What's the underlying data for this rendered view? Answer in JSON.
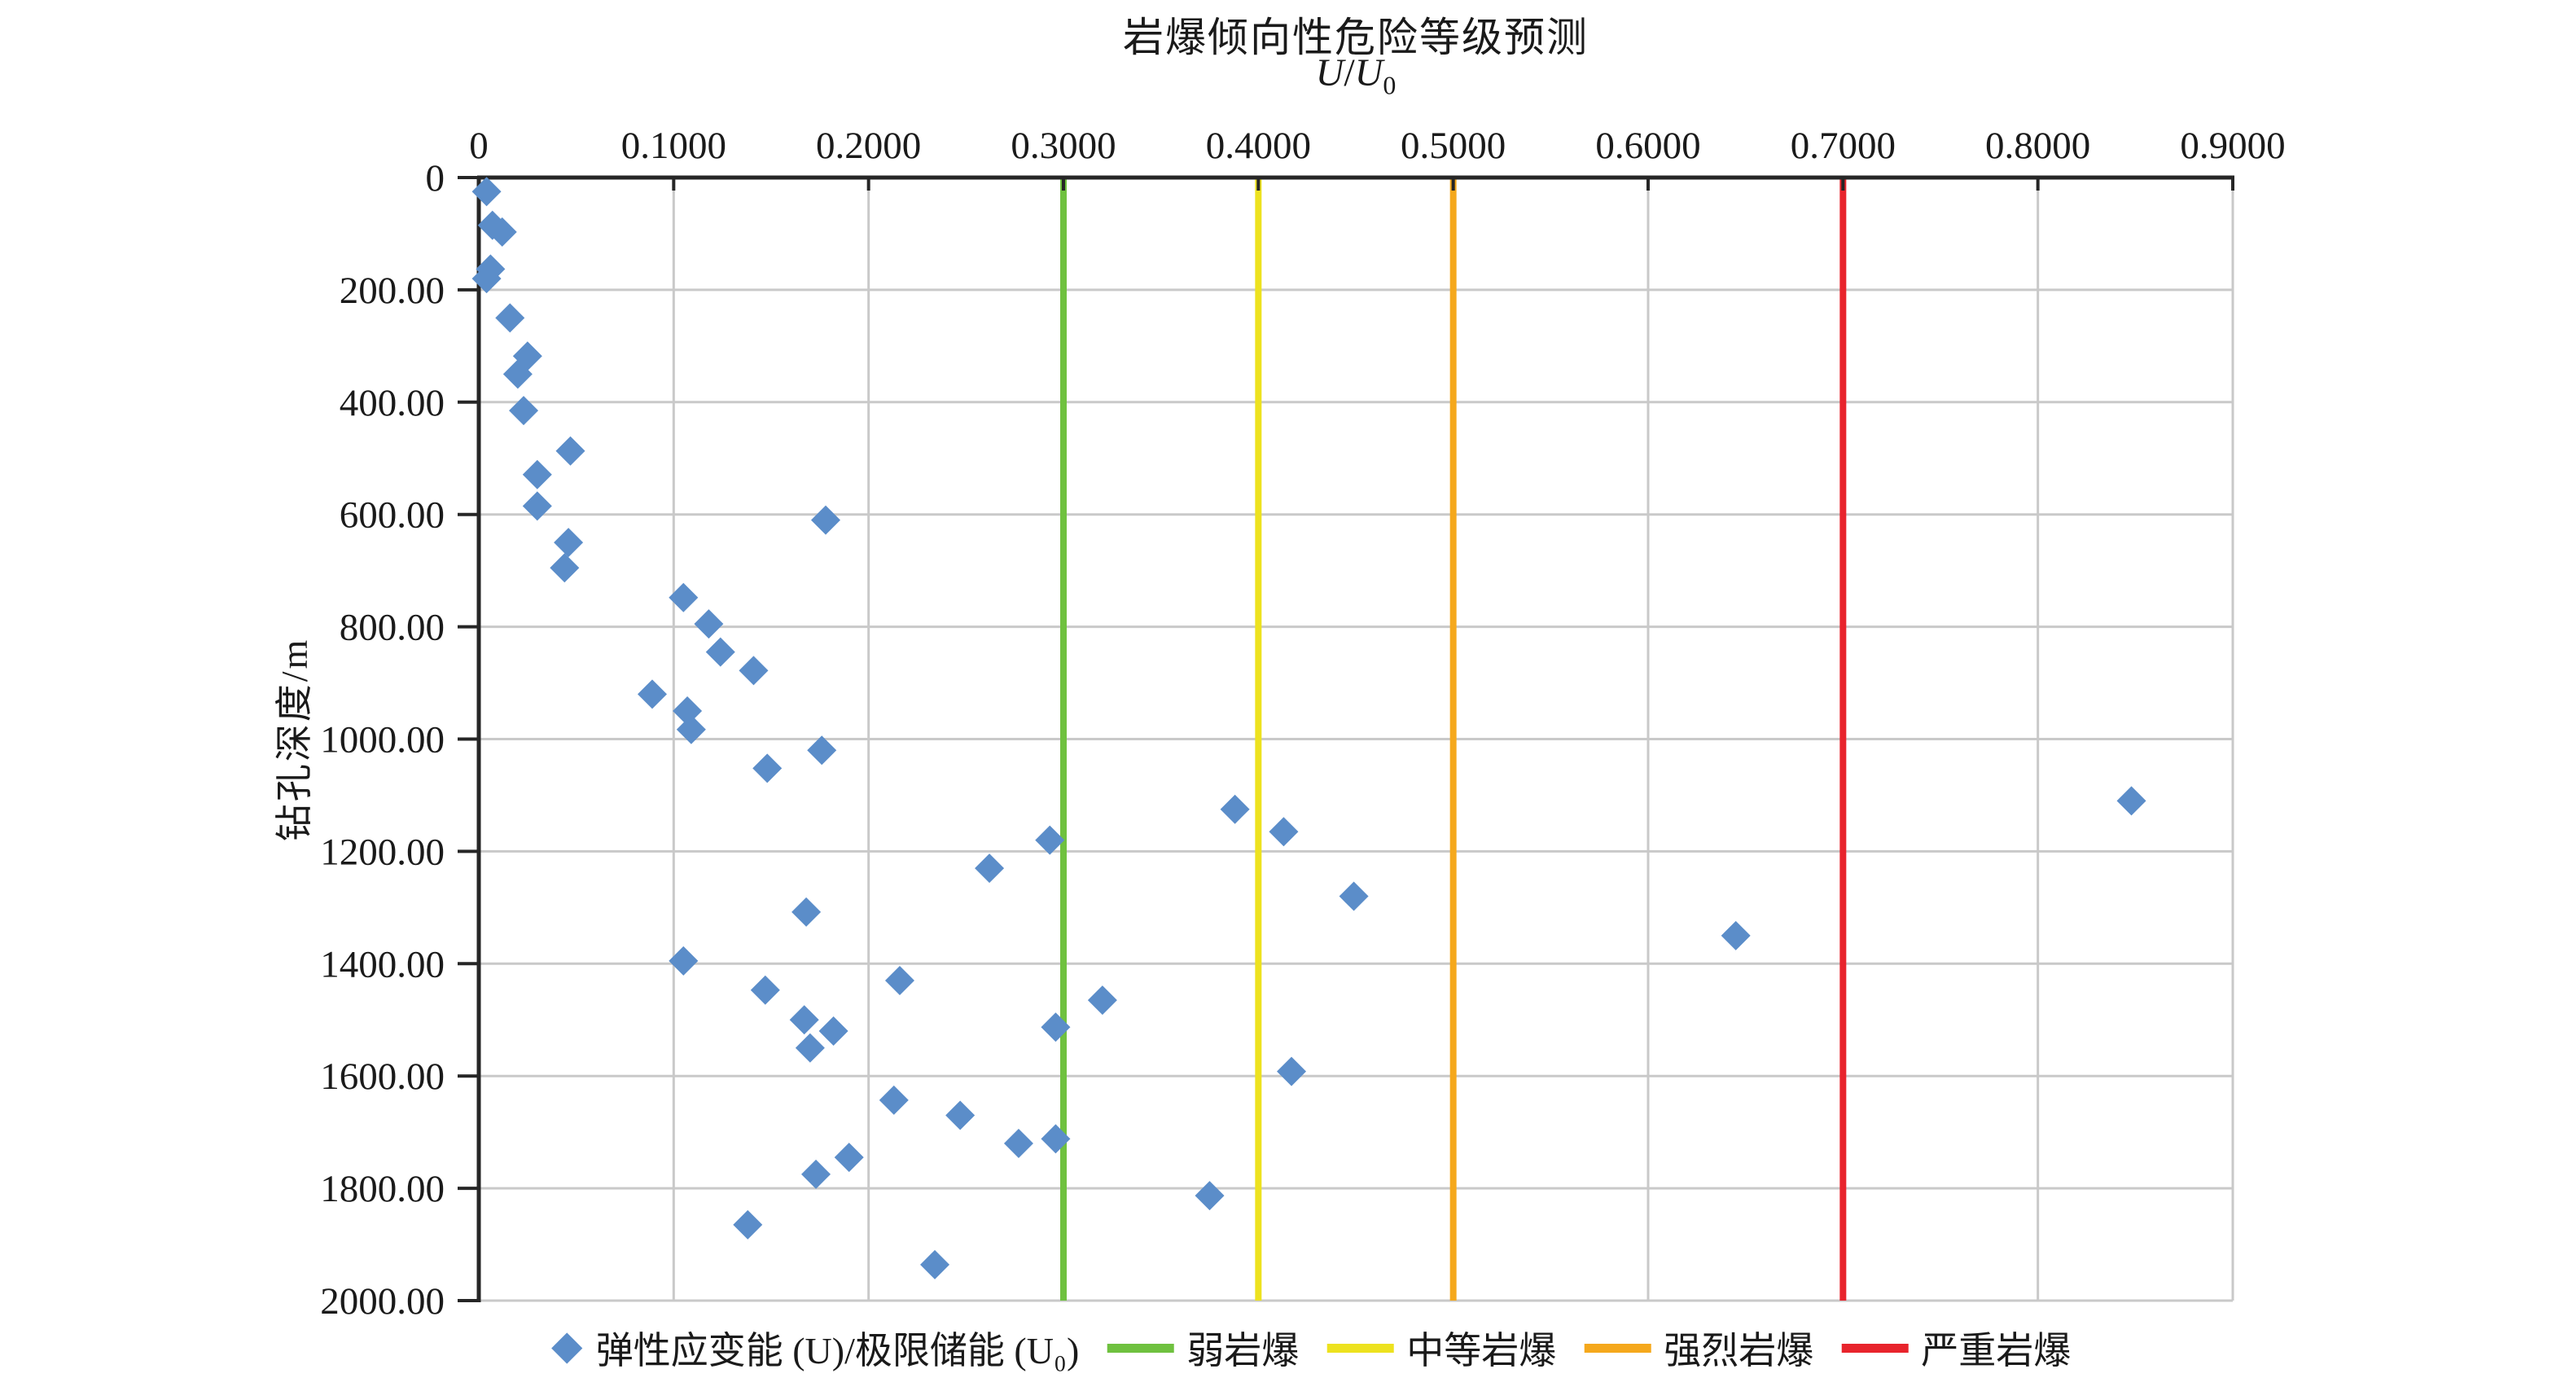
{
  "chart_data": {
    "type": "scatter",
    "title": "岩爆倾向性危险等级预测",
    "subtitle_parts": {
      "u1": "U",
      "slash": "/",
      "u2": "U",
      "sub": "0"
    },
    "ylabel": "钻孔深度/m",
    "xlim": [
      0,
      0.9
    ],
    "ylim": [
      0,
      2000
    ],
    "y_inverted": true,
    "grid": true,
    "legend_position": "bottom",
    "x_ticks": [
      {
        "value": 0.0,
        "label": "0"
      },
      {
        "value": 0.1,
        "label": "0.1000"
      },
      {
        "value": 0.2,
        "label": "0.2000"
      },
      {
        "value": 0.3,
        "label": "0.3000"
      },
      {
        "value": 0.4,
        "label": "0.4000"
      },
      {
        "value": 0.5,
        "label": "0.5000"
      },
      {
        "value": 0.6,
        "label": "0.6000"
      },
      {
        "value": 0.7,
        "label": "0.7000"
      },
      {
        "value": 0.8,
        "label": "0.8000"
      },
      {
        "value": 0.9,
        "label": "0.9000"
      }
    ],
    "y_ticks": [
      {
        "value": 0,
        "label": "0"
      },
      {
        "value": 200,
        "label": "200.00"
      },
      {
        "value": 400,
        "label": "400.00"
      },
      {
        "value": 600,
        "label": "600.00"
      },
      {
        "value": 800,
        "label": "800.00"
      },
      {
        "value": 1000,
        "label": "1000.00"
      },
      {
        "value": 1200,
        "label": "1200.00"
      },
      {
        "value": 1400,
        "label": "1400.00"
      },
      {
        "value": 1600,
        "label": "1600.00"
      },
      {
        "value": 1800,
        "label": "1800.00"
      },
      {
        "value": 2000,
        "label": "2000.00"
      }
    ],
    "series_label": "弹性应变能 (U)/极限储能 (U₀)",
    "points": [
      [
        0.004,
        25
      ],
      [
        0.007,
        85
      ],
      [
        0.012,
        97
      ],
      [
        0.006,
        163
      ],
      [
        0.004,
        180
      ],
      [
        0.016,
        250
      ],
      [
        0.025,
        318
      ],
      [
        0.02,
        350
      ],
      [
        0.023,
        415
      ],
      [
        0.047,
        487
      ],
      [
        0.03,
        529
      ],
      [
        0.03,
        585
      ],
      [
        0.046,
        650
      ],
      [
        0.044,
        695
      ],
      [
        0.178,
        610
      ],
      [
        0.105,
        748
      ],
      [
        0.118,
        795
      ],
      [
        0.124,
        845
      ],
      [
        0.141,
        878
      ],
      [
        0.089,
        920
      ],
      [
        0.107,
        950
      ],
      [
        0.109,
        983
      ],
      [
        0.176,
        1020
      ],
      [
        0.148,
        1052
      ],
      [
        0.848,
        1110
      ],
      [
        0.388,
        1125
      ],
      [
        0.413,
        1165
      ],
      [
        0.293,
        1180
      ],
      [
        0.262,
        1230
      ],
      [
        0.449,
        1280
      ],
      [
        0.168,
        1308
      ],
      [
        0.645,
        1350
      ],
      [
        0.105,
        1395
      ],
      [
        0.216,
        1430
      ],
      [
        0.147,
        1447
      ],
      [
        0.32,
        1465
      ],
      [
        0.167,
        1500
      ],
      [
        0.296,
        1513
      ],
      [
        0.182,
        1520
      ],
      [
        0.17,
        1550
      ],
      [
        0.417,
        1592
      ],
      [
        0.213,
        1643
      ],
      [
        0.247,
        1670
      ],
      [
        0.296,
        1712
      ],
      [
        0.277,
        1720
      ],
      [
        0.19,
        1745
      ],
      [
        0.173,
        1775
      ],
      [
        0.375,
        1813
      ],
      [
        0.138,
        1865
      ],
      [
        0.234,
        1936
      ]
    ],
    "thresholds": [
      {
        "key": "weak",
        "value": 0.3,
        "label": "弱岩爆",
        "color": "#6FC13F"
      },
      {
        "key": "moderate",
        "value": 0.4,
        "label": "中等岩爆",
        "color": "#EDE21F"
      },
      {
        "key": "strong",
        "value": 0.5,
        "label": "强烈岩爆",
        "color": "#F5A81C"
      },
      {
        "key": "severe",
        "value": 0.7,
        "label": "严重岩爆",
        "color": "#E8242C"
      }
    ],
    "colors": {
      "points": "#5B8DC9",
      "grid": "#C9C9C9",
      "axis": "#262626",
      "text": "#1A1A1A"
    }
  }
}
